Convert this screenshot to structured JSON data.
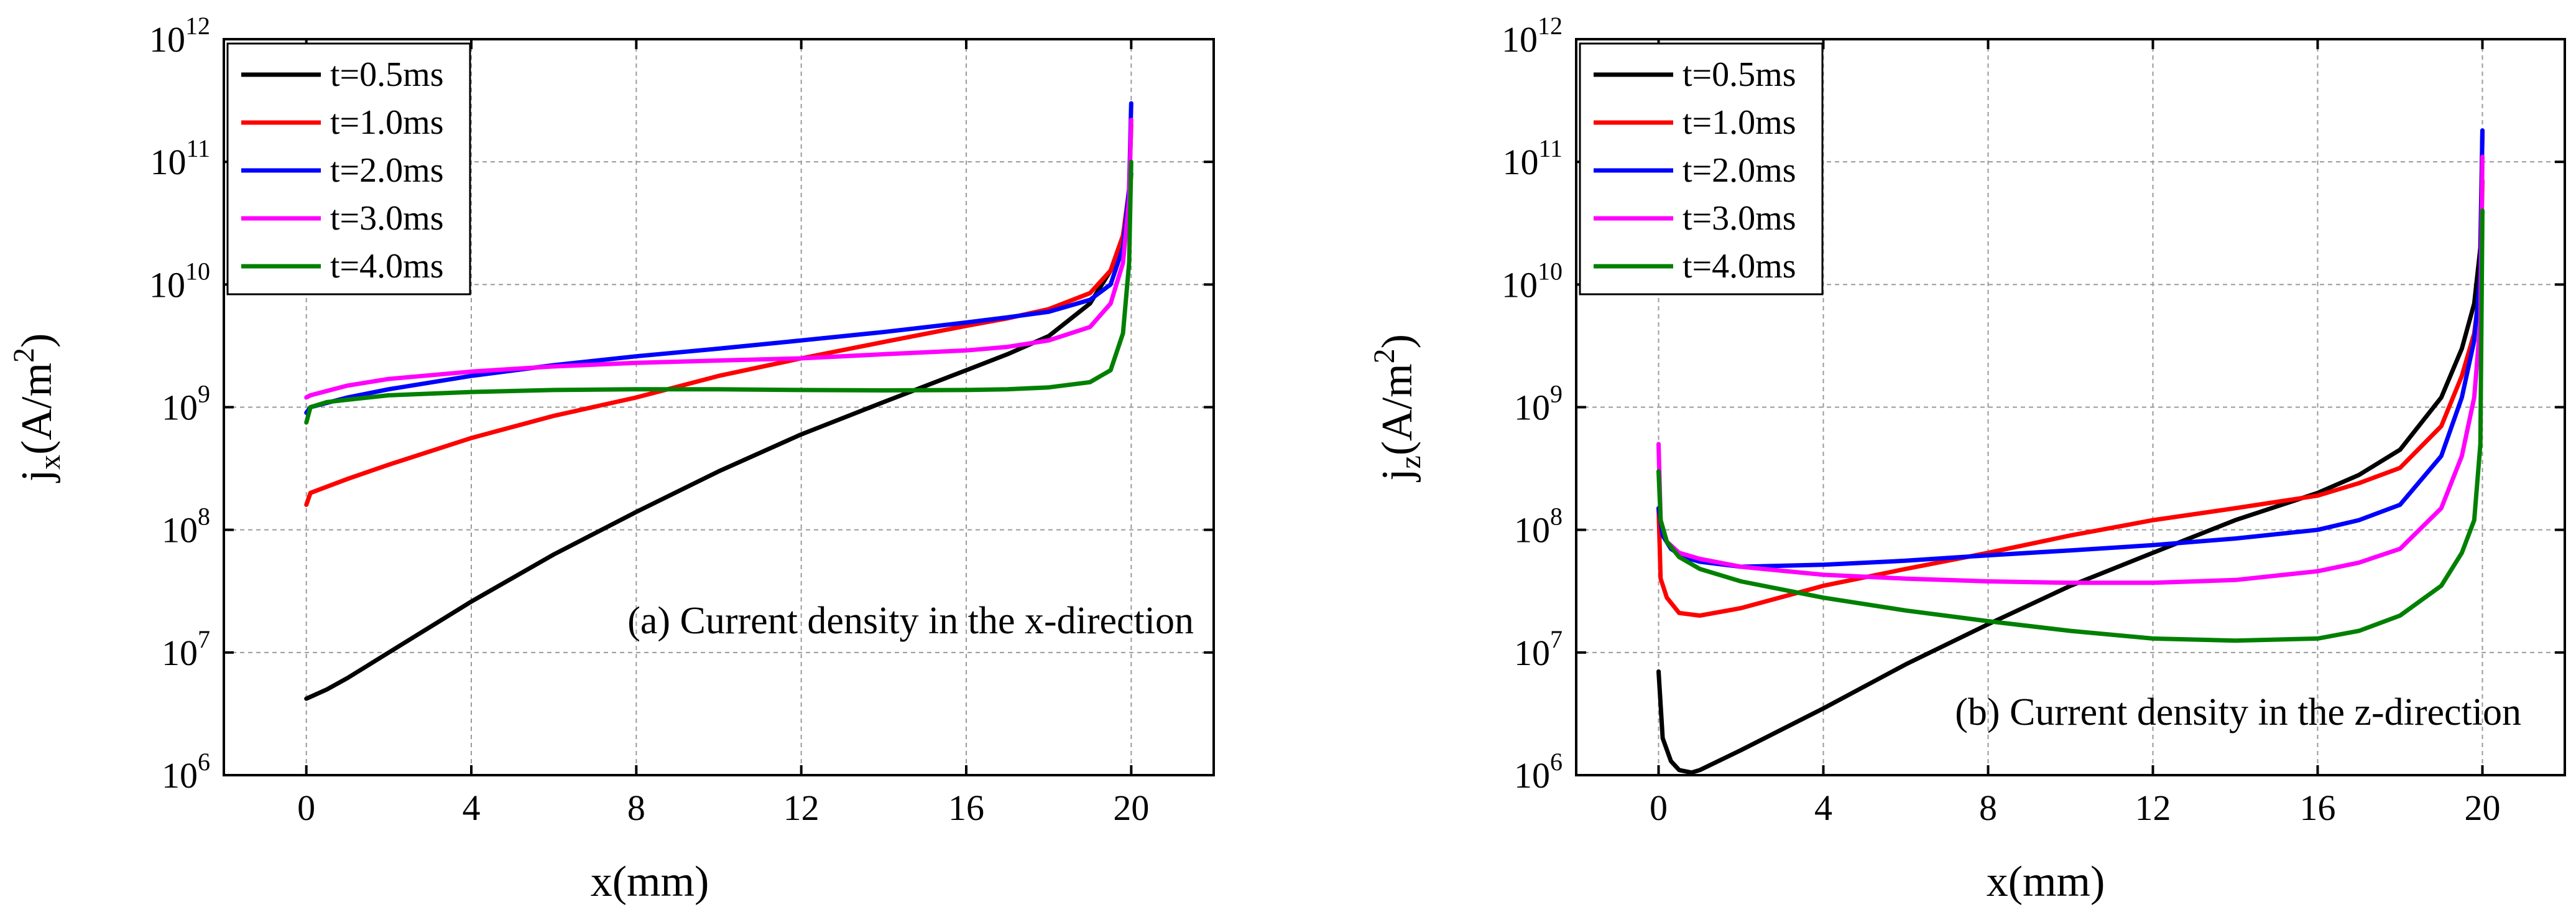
{
  "chart_data": [
    {
      "type": "line",
      "panel": "a",
      "annotation": "(a) Current density in the x-direction",
      "xlabel": "x(mm)",
      "ylabel": "j_x(A/m^2)",
      "ylabel_parts": {
        "main": "j",
        "sub": "x",
        "unit_open": "(A/m",
        "sup": "2",
        "unit_close": ")"
      },
      "xlim": [
        -2,
        22
      ],
      "ylim": [
        1000000.0,
        1000000000000.0
      ],
      "yscale": "log",
      "xticks": [
        0,
        4,
        8,
        12,
        16,
        20
      ],
      "xtick_labels": [
        "0",
        "4",
        "8",
        "12",
        "16",
        "20"
      ],
      "yticks": [
        1000000.0,
        10000000.0,
        100000000.0,
        1000000000.0,
        10000000000.0,
        100000000000.0,
        1000000000000.0
      ],
      "ytick_labels": [
        {
          "base": "10",
          "exp": "6"
        },
        {
          "base": "10",
          "exp": "7"
        },
        {
          "base": "10",
          "exp": "8"
        },
        {
          "base": "10",
          "exp": "9"
        },
        {
          "base": "10",
          "exp": "10"
        },
        {
          "base": "10",
          "exp": "11"
        },
        {
          "base": "10",
          "exp": "12"
        }
      ],
      "grid": true,
      "legend": "top-left",
      "series": [
        {
          "name": "t=0.5ms",
          "color": "#000000",
          "x": [
            0,
            0.5,
            1,
            2,
            4,
            6,
            8,
            10,
            12,
            14,
            16,
            17,
            18,
            19,
            19.5,
            19.8,
            19.95,
            20
          ],
          "y": [
            4200000.0,
            5000000.0,
            6200000.0,
            10000000.0,
            26000000.0,
            63000000.0,
            140000000.0,
            300000000.0,
            600000000.0,
            1100000000.0,
            2000000000.0,
            2700000000.0,
            3800000000.0,
            7000000000.0,
            13000000000.0,
            25000000000.0,
            50000000000.0,
            80000000000.0
          ]
        },
        {
          "name": "t=1.0ms",
          "color": "#ff0000",
          "x": [
            0,
            0.1,
            1,
            2,
            4,
            6,
            8,
            10,
            12,
            14,
            16,
            17,
            18,
            19,
            19.5,
            19.8,
            19.95,
            20
          ],
          "y": [
            160000000.0,
            200000000.0,
            260000000.0,
            340000000.0,
            560000000.0,
            850000000.0,
            1200000000.0,
            1800000000.0,
            2500000000.0,
            3400000000.0,
            4600000000.0,
            5300000000.0,
            6300000000.0,
            8500000000.0,
            13000000000.0,
            25000000000.0,
            60000000000.0,
            200000000000.0
          ]
        },
        {
          "name": "t=2.0ms",
          "color": "#0000ff",
          "x": [
            0,
            0.1,
            1,
            2,
            4,
            6,
            8,
            10,
            12,
            14,
            16,
            17,
            18,
            19,
            19.5,
            19.8,
            19.95,
            20
          ],
          "y": [
            900000000.0,
            1000000000.0,
            1200000000.0,
            1400000000.0,
            1800000000.0,
            2200000000.0,
            2600000000.0,
            3000000000.0,
            3500000000.0,
            4100000000.0,
            4900000000.0,
            5400000000.0,
            6000000000.0,
            7500000000.0,
            10000000000.0,
            20000000000.0,
            60000000000.0,
            300000000000.0
          ]
        },
        {
          "name": "t=3.0ms",
          "color": "#ff00ff",
          "x": [
            0,
            0.1,
            1,
            2,
            4,
            6,
            8,
            10,
            12,
            14,
            16,
            17,
            18,
            19,
            19.5,
            19.8,
            19.95,
            20
          ],
          "y": [
            1200000000.0,
            1250000000.0,
            1500000000.0,
            1700000000.0,
            1950000000.0,
            2150000000.0,
            2300000000.0,
            2400000000.0,
            2500000000.0,
            2700000000.0,
            2900000000.0,
            3100000000.0,
            3500000000.0,
            4500000000.0,
            7000000000.0,
            15000000000.0,
            50000000000.0,
            220000000000.0
          ]
        },
        {
          "name": "t=4.0ms",
          "color": "#008000",
          "x": [
            0,
            0.1,
            0.5,
            1,
            2,
            4,
            6,
            8,
            10,
            12,
            14,
            16,
            17,
            18,
            19,
            19.5,
            19.8,
            19.95,
            20
          ],
          "y": [
            750000000.0,
            1000000000.0,
            1100000000.0,
            1150000000.0,
            1250000000.0,
            1330000000.0,
            1380000000.0,
            1400000000.0,
            1400000000.0,
            1380000000.0,
            1370000000.0,
            1380000000.0,
            1400000000.0,
            1450000000.0,
            1600000000.0,
            2000000000.0,
            4000000000.0,
            15000000000.0,
            100000000000.0
          ]
        }
      ]
    },
    {
      "type": "line",
      "panel": "b",
      "annotation": "(b) Current density in the z-direction",
      "xlabel": "x(mm)",
      "ylabel": "j_z(A/m^2)",
      "ylabel_parts": {
        "main": "j",
        "sub": "z",
        "unit_open": "(A/m",
        "sup": "2",
        "unit_close": ")"
      },
      "xlim": [
        -2,
        22
      ],
      "ylim": [
        1000000.0,
        1000000000000.0
      ],
      "yscale": "log",
      "xticks": [
        0,
        4,
        8,
        12,
        16,
        20
      ],
      "xtick_labels": [
        "0",
        "4",
        "8",
        "12",
        "16",
        "20"
      ],
      "yticks": [
        1000000.0,
        10000000.0,
        100000000.0,
        1000000000.0,
        10000000000.0,
        100000000000.0,
        1000000000000.0
      ],
      "ytick_labels": [
        {
          "base": "10",
          "exp": "6"
        },
        {
          "base": "10",
          "exp": "7"
        },
        {
          "base": "10",
          "exp": "8"
        },
        {
          "base": "10",
          "exp": "9"
        },
        {
          "base": "10",
          "exp": "10"
        },
        {
          "base": "10",
          "exp": "11"
        },
        {
          "base": "10",
          "exp": "12"
        }
      ],
      "grid": true,
      "legend": "top-left",
      "series": [
        {
          "name": "t=0.5ms",
          "color": "#000000",
          "x": [
            0,
            0.1,
            0.3,
            0.5,
            0.8,
            1,
            2,
            4,
            6,
            8,
            10,
            12,
            14,
            16,
            17,
            18,
            19,
            19.5,
            19.8,
            19.95,
            20
          ],
          "y": [
            7000000.0,
            2000000.0,
            1300000.0,
            1100000.0,
            1050000.0,
            1100000.0,
            1600000.0,
            3500000.0,
            8000000.0,
            17000000.0,
            35000000.0,
            65000000.0,
            120000000.0,
            200000000.0,
            280000000.0,
            450000000.0,
            1200000000.0,
            3000000000.0,
            7000000000.0,
            20000000000.0,
            180000000000.0
          ]
        },
        {
          "name": "t=1.0ms",
          "color": "#ff0000",
          "x": [
            0,
            0.05,
            0.2,
            0.5,
            1,
            2,
            4,
            6,
            8,
            10,
            12,
            14,
            16,
            17,
            18,
            19,
            19.5,
            19.8,
            19.95,
            20
          ],
          "y": [
            150000000.0,
            40000000.0,
            28000000.0,
            21000000.0,
            20000000.0,
            23000000.0,
            35000000.0,
            48000000.0,
            65000000.0,
            90000000.0,
            120000000.0,
            150000000.0,
            190000000.0,
            240000000.0,
            320000000.0,
            700000000.0,
            1800000000.0,
            4000000000.0,
            10000000000.0,
            70000000000.0
          ]
        },
        {
          "name": "t=2.0ms",
          "color": "#0000ff",
          "x": [
            0,
            0.1,
            0.3,
            0.6,
            1,
            2,
            4,
            6,
            8,
            10,
            12,
            14,
            16,
            17,
            18,
            19,
            19.5,
            19.8,
            19.95,
            20
          ],
          "y": [
            150000000.0,
            90000000.0,
            70000000.0,
            60000000.0,
            55000000.0,
            50000000.0,
            52000000.0,
            56000000.0,
            62000000.0,
            68000000.0,
            75000000.0,
            85000000.0,
            100000000.0,
            120000000.0,
            160000000.0,
            400000000.0,
            1200000000.0,
            3500000000.0,
            12000000000.0,
            180000000000.0
          ]
        },
        {
          "name": "t=3.0ms",
          "color": "#ff00ff",
          "x": [
            0,
            0.05,
            0.2,
            0.5,
            1,
            2,
            4,
            6,
            8,
            10,
            12,
            14,
            16,
            17,
            18,
            19,
            19.5,
            19.8,
            19.95,
            20
          ],
          "y": [
            500000000.0,
            120000000.0,
            80000000.0,
            65000000.0,
            58000000.0,
            50000000.0,
            43000000.0,
            40000000.0,
            38000000.0,
            37000000.0,
            37000000.0,
            39000000.0,
            46000000.0,
            54000000.0,
            70000000.0,
            150000000.0,
            400000000.0,
            1200000000.0,
            5000000000.0,
            110000000000.0
          ]
        },
        {
          "name": "t=4.0ms",
          "color": "#008000",
          "x": [
            0,
            0.05,
            0.2,
            0.5,
            1,
            2,
            4,
            6,
            8,
            10,
            12,
            14,
            16,
            17,
            18,
            19,
            19.5,
            19.8,
            19.95,
            20
          ],
          "y": [
            300000000.0,
            120000000.0,
            80000000.0,
            60000000.0,
            48000000.0,
            38000000.0,
            28000000.0,
            22000000.0,
            18000000.0,
            15000000.0,
            13000000.0,
            12500000.0,
            13000000.0,
            15000000.0,
            20000000.0,
            35000000.0,
            65000000.0,
            120000000.0,
            500000000.0,
            40000000000.0
          ]
        }
      ]
    }
  ]
}
